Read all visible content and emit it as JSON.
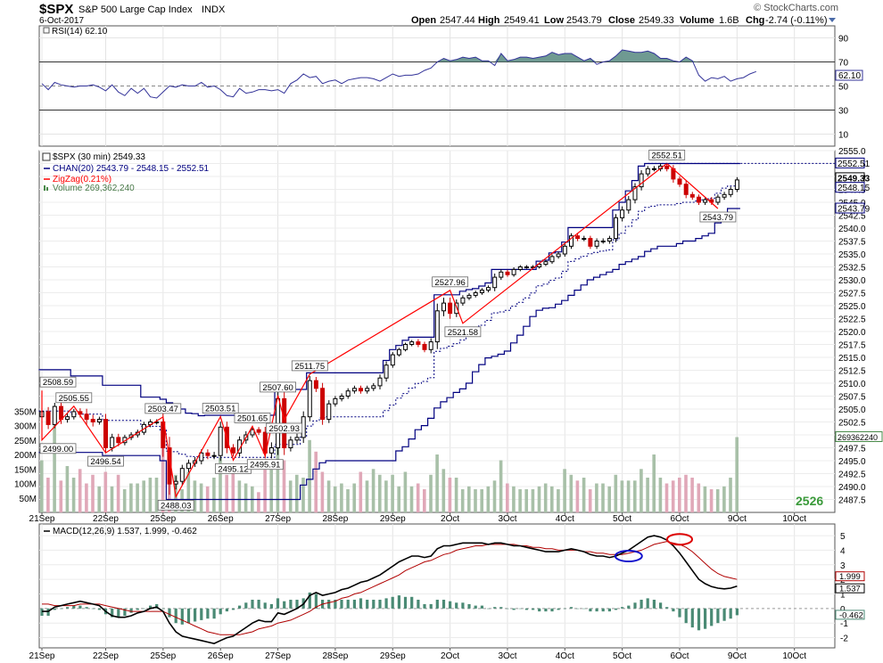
{
  "header": {
    "symbol": "$SPX",
    "name": "S&P 500 Large Cap Index",
    "exchange": "INDX",
    "watermark": "© StockCharts.com",
    "date": "6-Oct-2017",
    "open_label": "Open",
    "open": "2547.44",
    "high_label": "High",
    "high": "2549.41",
    "low_label": "Low",
    "low": "2543.79",
    "close_label": "Close",
    "close": "2549.33",
    "volume_label": "Volume",
    "volume": "1.6B",
    "chg_label": "Chg",
    "chg": "-2.74 (-0.11%)"
  },
  "colors": {
    "up": "#000000",
    "down": "#cc0000",
    "zigzag": "#ff0000",
    "channel": "#000080",
    "rsi": "#333399",
    "rsi_fill": "#5f8f86",
    "vol_up": "#a8c0a8",
    "vol_down": "#e0a8b8",
    "macd": "#000000",
    "signal": "#b00000",
    "hist": "#4a8a74",
    "highlight_blue": "#1010cc",
    "highlight_red": "#dd0000"
  },
  "chart_data": [
    {
      "type": "line",
      "id": "rsi",
      "legend": "RSI(14) 62.10",
      "current": "62.10",
      "ylim": [
        0,
        100
      ],
      "ticks": [
        10,
        30,
        50,
        70,
        90
      ],
      "overbought": 70,
      "oversold": 30,
      "values": [
        52,
        47,
        53,
        51,
        50,
        49,
        50,
        50,
        51,
        49,
        46,
        51,
        45,
        42,
        48,
        44,
        48,
        41,
        40,
        45,
        50,
        49,
        51,
        50,
        50,
        53,
        49,
        50,
        47,
        42,
        41,
        48,
        44,
        45,
        47,
        47,
        46,
        47,
        44,
        52,
        55,
        60,
        57,
        58,
        52,
        54,
        55,
        52,
        55,
        56,
        57,
        57,
        56,
        54,
        57,
        60,
        58,
        59,
        59,
        60,
        63,
        65,
        70,
        73,
        71,
        72,
        74,
        73,
        74,
        71,
        71,
        67,
        77,
        71,
        72,
        74,
        74,
        73,
        74,
        75,
        78,
        76,
        77,
        77,
        74,
        71,
        73,
        68,
        70,
        71,
        75,
        80,
        79,
        78,
        78,
        79,
        77,
        73,
        73,
        71,
        70,
        74,
        71,
        59,
        54,
        57,
        56,
        58,
        54,
        56,
        57,
        60,
        62
      ]
    },
    {
      "type": "candlestick",
      "id": "price",
      "legend": [
        "$SPX (30 min) 2549.33",
        "CHAN(20) 2543.79 - 2548.15 - 2552.51",
        "ZigZag(0.21%)",
        "Volume 269,362,240"
      ],
      "ylim": [
        2485,
        2555
      ],
      "yticks": [
        "2487.5",
        "2490.0",
        "2492.5",
        "2495.0",
        "2497.5",
        "2500.0",
        "2502.5",
        "2505.0",
        "2507.5",
        "2510.0",
        "2512.5",
        "2515.0",
        "2517.5",
        "2520.0",
        "2522.5",
        "2525.0",
        "2527.5",
        "2530.0",
        "2532.5",
        "2535.0",
        "2537.5",
        "2540.0",
        "2542.5",
        "2545.0",
        "2547.5",
        "2550.0",
        "2552.5",
        "2555.0"
      ],
      "volume_ticks": [
        "50M",
        "100M",
        "150M",
        "200M",
        "250M",
        "300M",
        "350M"
      ],
      "right_labels": {
        "channel_upper": "2552.51",
        "close": "2549.33",
        "mid": "2548.15",
        "channel_lower": "2543.79",
        "volume": "269362240"
      },
      "x_labels": [
        "21Sep",
        "22Sep",
        "25Sep",
        "26Sep",
        "27Sep",
        "28Sep",
        "29Sep",
        "2Oct",
        "3Oct",
        "4Oct",
        "5Oct",
        "6Oct",
        "9Oct",
        "10Oct"
      ],
      "big_label": "2526",
      "zigzag_points": [
        {
          "label": "2508.59",
          "value": 2508.59
        },
        {
          "label": "2499.00",
          "value": 2499.0
        },
        {
          "label": "2505.55",
          "value": 2505.55
        },
        {
          "label": "2496.54",
          "value": 2496.54
        },
        {
          "label": "2503.47",
          "value": 2503.47
        },
        {
          "label": "2488.03",
          "value": 2488.03
        },
        {
          "label": "2503.51",
          "value": 2503.51
        },
        {
          "label": "2495.12",
          "value": 2495.12
        },
        {
          "label": "2501.65",
          "value": 2501.65
        },
        {
          "label": "2495.91",
          "value": 2495.91
        },
        {
          "label": "2507.60",
          "value": 2507.6
        },
        {
          "label": "2502.93",
          "value": 2502.93
        },
        {
          "label": "2511.75",
          "value": 2511.75
        },
        {
          "label": "2527.96",
          "value": 2527.96
        },
        {
          "label": "2521.58",
          "value": 2521.58
        },
        {
          "label": "2552.51",
          "value": 2552.51
        },
        {
          "label": "2543.79",
          "value": 2543.79
        }
      ],
      "closes": [
        2504.5,
        2502.0,
        2505.5,
        2503.0,
        2503.5,
        2504.5,
        2504.0,
        2503.0,
        2502.5,
        2503.0,
        2497.5,
        2499.5,
        2498.5,
        2499.5,
        2500.0,
        2500.5,
        2502.0,
        2502.5,
        2502.5,
        2497.5,
        2490.5,
        2491.0,
        2493.5,
        2494.5,
        2495.0,
        2496.5,
        2496.0,
        2496.0,
        2501.5,
        2497.5,
        2496.5,
        2499.0,
        2500.0,
        2501.0,
        2500.5,
        2496.5,
        2497.5,
        2507.0,
        2497.5,
        2499.0,
        2499.5,
        2503.5,
        2510.5,
        2509.0,
        2503.0,
        2506.0,
        2507.0,
        2507.5,
        2508.5,
        2509.0,
        2508.5,
        2509.0,
        2509.5,
        2511.0,
        2513.5,
        2515.5,
        2516.5,
        2517.5,
        2518.0,
        2517.5,
        2516.5,
        2518.0,
        2524.0,
        2525.5,
        2523.5,
        2525.5,
        2526.5,
        2527.0,
        2527.5,
        2528.0,
        2528.5,
        2530.5,
        2531.5,
        2531.0,
        2532.0,
        2532.5,
        2532.5,
        2532.5,
        2533.0,
        2533.5,
        2534.5,
        2535.0,
        2536.5,
        2538.5,
        2538.0,
        2538.0,
        2536.5,
        2537.5,
        2537.5,
        2538.0,
        2542.0,
        2543.5,
        2545.5,
        2548.0,
        2550.5,
        2551.5,
        2551.5,
        2552.0,
        2551.5,
        2549.5,
        2548.5,
        2546.5,
        2546.0,
        2545.0,
        2545.5,
        2545.0,
        2546.0,
        2546.5,
        2547.5,
        2549.33
      ],
      "ranges": [
        3.5,
        2.5,
        2.0,
        2.5,
        1.8,
        1.5,
        1.8,
        3.0,
        2.5,
        1.5,
        3.0,
        2.0,
        2.0,
        1.5,
        1.5,
        1.5,
        1.5,
        1.5,
        1.5,
        5.0,
        6.0,
        3.0,
        2.0,
        2.0,
        2.0,
        2.0,
        2.0,
        2.0,
        3.0,
        3.0,
        2.0,
        2.0,
        2.0,
        1.5,
        1.5,
        3.0,
        3.0,
        4.0,
        4.0,
        2.0,
        2.0,
        3.0,
        2.5,
        2.0,
        3.0,
        2.0,
        1.5,
        1.5,
        1.5,
        1.5,
        1.5,
        1.5,
        1.5,
        2.0,
        2.0,
        1.5,
        1.0,
        1.0,
        1.0,
        1.5,
        1.5,
        2.0,
        4.0,
        3.0,
        3.0,
        2.0,
        1.5,
        1.2,
        1.2,
        1.2,
        1.2,
        2.0,
        1.5,
        1.2,
        1.2,
        1.0,
        1.0,
        1.0,
        1.0,
        1.0,
        1.2,
        1.2,
        1.5,
        1.5,
        1.5,
        1.5,
        1.5,
        1.5,
        1.5,
        1.5,
        2.0,
        2.0,
        2.0,
        2.0,
        2.0,
        1.5,
        1.5,
        1.5,
        1.5,
        2.0,
        1.5,
        2.0,
        1.5,
        1.5,
        1.5,
        1.5,
        1.5,
        1.5,
        1.5,
        1.5
      ],
      "channel_upper": [
        2512.6,
        2512.6,
        2512.6,
        2512.6,
        2512.6,
        2511.4,
        2511.4,
        2511.4,
        2511.4,
        2511.4,
        2509.6,
        2509.6,
        2509.6,
        2509.6,
        2509.6,
        2509.6,
        2507.3,
        2507.3,
        2507.3,
        2506.9,
        2506.2,
        2506.0,
        2505.0,
        2504.2,
        2504.1,
        2503.7,
        2503.8,
        2503.8,
        2503.8,
        2503.8,
        2503.8,
        2503.8,
        2503.8,
        2503.8,
        2503.8,
        2503.8,
        2503.8,
        2508.8,
        2508.8,
        2508.8,
        2508.8,
        2508.8,
        2512.0,
        2512.0,
        2512.0,
        2512.0,
        2512.0,
        2512.0,
        2512.0,
        2512.0,
        2512.0,
        2512.0,
        2512.0,
        2512.0,
        2514.4,
        2516.5,
        2517.3,
        2518.3,
        2518.9,
        2518.9,
        2518.9,
        2518.9,
        2527.1,
        2527.1,
        2527.1,
        2527.1,
        2527.8,
        2528.1,
        2528.3,
        2528.8,
        2529.4,
        2532.0,
        2532.0,
        2532.0,
        2532.0,
        2532.0,
        2532.0,
        2532.0,
        2533.6,
        2533.8,
        2535.2,
        2535.4,
        2537.3,
        2540.1,
        2540.1,
        2540.1,
        2540.1,
        2540.1,
        2540.1,
        2540.1,
        2543.5,
        2545.0,
        2547.2,
        2549.2,
        2552.0,
        2552.5,
        2552.5,
        2552.5,
        2552.5,
        2552.5,
        2552.5,
        2552.5,
        2552.5,
        2552.5,
        2552.5,
        2552.5,
        2552.5,
        2552.5,
        2552.5,
        2552.5
      ],
      "channel_lower": [
        2496.6,
        2496.6,
        2496.6,
        2496.6,
        2496.6,
        2496.6,
        2496.6,
        2496.6,
        2496.6,
        2496.6,
        2496.0,
        2496.0,
        2496.0,
        2496.0,
        2496.0,
        2496.0,
        2496.0,
        2496.0,
        2496.0,
        2495.0,
        2487.5,
        2487.5,
        2487.5,
        2487.5,
        2487.5,
        2487.5,
        2487.5,
        2487.5,
        2487.5,
        2487.5,
        2487.5,
        2487.5,
        2487.5,
        2487.5,
        2487.5,
        2487.5,
        2487.5,
        2487.5,
        2487.5,
        2487.5,
        2487.5,
        2490.3,
        2491.4,
        2493.4,
        2494.6,
        2495.0,
        2495.0,
        2495.0,
        2495.0,
        2495.0,
        2495.0,
        2495.0,
        2495.0,
        2495.0,
        2495.0,
        2495.0,
        2496.9,
        2497.7,
        2499.2,
        2501.0,
        2501.8,
        2503.2,
        2505.2,
        2506.4,
        2507.2,
        2508.2,
        2508.9,
        2510.0,
        2512.2,
        2513.6,
        2514.9,
        2515.2,
        2515.6,
        2516.2,
        2517.8,
        2519.3,
        2521.0,
        2522.9,
        2524.1,
        2524.5,
        2524.6,
        2525.3,
        2526.0,
        2527.0,
        2528.0,
        2529.0,
        2530.0,
        2530.5,
        2531.0,
        2531.5,
        2532.0,
        2533.0,
        2533.5,
        2534.0,
        2534.5,
        2535.5,
        2536.0,
        2536.5,
        2536.5,
        2536.5,
        2537.0,
        2537.5,
        2537.5,
        2538.0,
        2538.5,
        2539.0,
        2541.0,
        2543.0,
        2543.8,
        2543.79
      ],
      "volume": [
        180,
        120,
        300,
        110,
        160,
        120,
        150,
        100,
        130,
        90,
        140,
        90,
        130,
        80,
        100,
        100,
        110,
        120,
        120,
        260,
        190,
        130,
        80,
        140,
        110,
        100,
        90,
        120,
        190,
        130,
        140,
        110,
        100,
        90,
        70,
        160,
        150,
        230,
        180,
        110,
        130,
        120,
        250,
        210,
        140,
        110,
        90,
        100,
        80,
        100,
        140,
        110,
        150,
        130,
        110,
        130,
        90,
        140,
        90,
        100,
        80,
        130,
        200,
        150,
        120,
        120,
        80,
        90,
        80,
        80,
        90,
        110,
        180,
        100,
        90,
        80,
        80,
        80,
        90,
        100,
        90,
        80,
        150,
        130,
        110,
        120,
        80,
        100,
        100,
        90,
        130,
        110,
        110,
        110,
        150,
        120,
        200,
        120,
        100,
        110,
        120,
        130,
        120,
        100,
        90,
        80,
        80,
        90,
        120,
        260
      ]
    },
    {
      "type": "line",
      "id": "macd",
      "legend": "MACD(12,26,9) 1.537, 1.999, -0.462",
      "ylim": [
        -2.7,
        5.8
      ],
      "yticks": [
        "-2",
        "-1",
        "0",
        "1",
        "2",
        "3",
        "4",
        "5"
      ],
      "right_labels": {
        "signal": "1.999",
        "macd": "1.537",
        "hist": "-0.462"
      },
      "macd": [
        -0.2,
        -0.2,
        0.1,
        0.2,
        0.3,
        0.4,
        0.5,
        0.4,
        0.3,
        0.2,
        -0.2,
        -0.5,
        -0.6,
        -0.6,
        -0.5,
        -0.3,
        -0.2,
        0.0,
        0.1,
        -0.2,
        -1.0,
        -1.6,
        -1.9,
        -2.0,
        -2.1,
        -2.2,
        -2.3,
        -2.4,
        -2.2,
        -2.0,
        -1.9,
        -1.6,
        -1.3,
        -1.0,
        -0.8,
        -0.9,
        -0.9,
        -0.3,
        -0.4,
        -0.2,
        0.0,
        0.3,
        0.9,
        1.1,
        0.9,
        1.0,
        1.1,
        1.3,
        1.4,
        1.6,
        1.8,
        1.9,
        2.1,
        2.3,
        2.6,
        2.9,
        3.2,
        3.4,
        3.6,
        3.6,
        3.5,
        3.6,
        4.1,
        4.3,
        4.3,
        4.4,
        4.5,
        4.5,
        4.5,
        4.5,
        4.4,
        4.5,
        4.5,
        4.4,
        4.3,
        4.3,
        4.2,
        4.1,
        4.0,
        3.9,
        3.9,
        3.9,
        4.0,
        4.1,
        4.0,
        3.9,
        3.7,
        3.6,
        3.6,
        3.5,
        3.6,
        3.8,
        4.0,
        4.3,
        4.6,
        4.9,
        5.0,
        4.9,
        4.7,
        4.3,
        3.8,
        3.2,
        2.6,
        2.0,
        1.7,
        1.5,
        1.4,
        1.35,
        1.4,
        1.537
      ],
      "signal": [
        0.3,
        0.3,
        0.2,
        0.2,
        0.2,
        0.2,
        0.3,
        0.3,
        0.3,
        0.3,
        0.2,
        0.1,
        0.0,
        -0.1,
        -0.2,
        -0.2,
        -0.2,
        -0.2,
        -0.2,
        -0.2,
        -0.4,
        -0.6,
        -0.8,
        -1.0,
        -1.2,
        -1.4,
        -1.6,
        -1.7,
        -1.8,
        -1.8,
        -1.8,
        -1.8,
        -1.7,
        -1.6,
        -1.4,
        -1.3,
        -1.2,
        -1.0,
        -0.9,
        -0.8,
        -0.6,
        -0.4,
        -0.2,
        0.1,
        0.3,
        0.4,
        0.5,
        0.7,
        0.8,
        1.0,
        1.1,
        1.3,
        1.5,
        1.7,
        1.9,
        2.1,
        2.3,
        2.6,
        2.8,
        3.0,
        3.2,
        3.3,
        3.5,
        3.7,
        3.8,
        4.0,
        4.1,
        4.2,
        4.3,
        4.3,
        4.4,
        4.4,
        4.4,
        4.4,
        4.4,
        4.3,
        4.3,
        4.2,
        4.2,
        4.1,
        4.1,
        4.0,
        4.0,
        4.0,
        4.0,
        3.9,
        3.9,
        3.8,
        3.8,
        3.7,
        3.7,
        3.7,
        3.8,
        3.9,
        4.0,
        4.2,
        4.4,
        4.5,
        4.6,
        4.5,
        4.4,
        4.2,
        3.9,
        3.5,
        3.1,
        2.7,
        2.4,
        2.2,
        2.1,
        1.999
      ],
      "hist": [
        -0.5,
        -0.5,
        -0.1,
        0.0,
        0.1,
        0.2,
        0.2,
        0.1,
        0.0,
        -0.1,
        -0.4,
        -0.6,
        -0.6,
        -0.5,
        -0.3,
        -0.1,
        0.0,
        0.2,
        0.3,
        0.0,
        -0.6,
        -1.0,
        -1.1,
        -1.0,
        -0.9,
        -0.8,
        -0.7,
        -0.7,
        -0.4,
        -0.2,
        -0.1,
        0.2,
        0.4,
        0.6,
        0.6,
        0.4,
        0.3,
        0.7,
        0.5,
        0.6,
        0.6,
        0.7,
        1.1,
        1.0,
        0.6,
        0.6,
        0.6,
        0.6,
        0.6,
        0.6,
        0.7,
        0.6,
        0.6,
        0.6,
        0.7,
        0.8,
        0.9,
        0.8,
        0.8,
        0.6,
        0.3,
        0.3,
        0.6,
        0.6,
        0.5,
        0.4,
        0.4,
        0.3,
        0.2,
        0.2,
        0.0,
        0.1,
        0.1,
        0.0,
        -0.1,
        0.0,
        -0.1,
        -0.1,
        -0.2,
        -0.2,
        -0.2,
        -0.1,
        0.0,
        0.1,
        0.0,
        0.0,
        -0.2,
        -0.2,
        -0.2,
        -0.2,
        -0.1,
        0.1,
        0.2,
        0.4,
        0.6,
        0.7,
        0.6,
        0.4,
        0.1,
        -0.2,
        -0.6,
        -1.0,
        -1.3,
        -1.5,
        -1.4,
        -1.2,
        -1.0,
        -0.85,
        -0.7,
        -0.462
      ]
    }
  ]
}
